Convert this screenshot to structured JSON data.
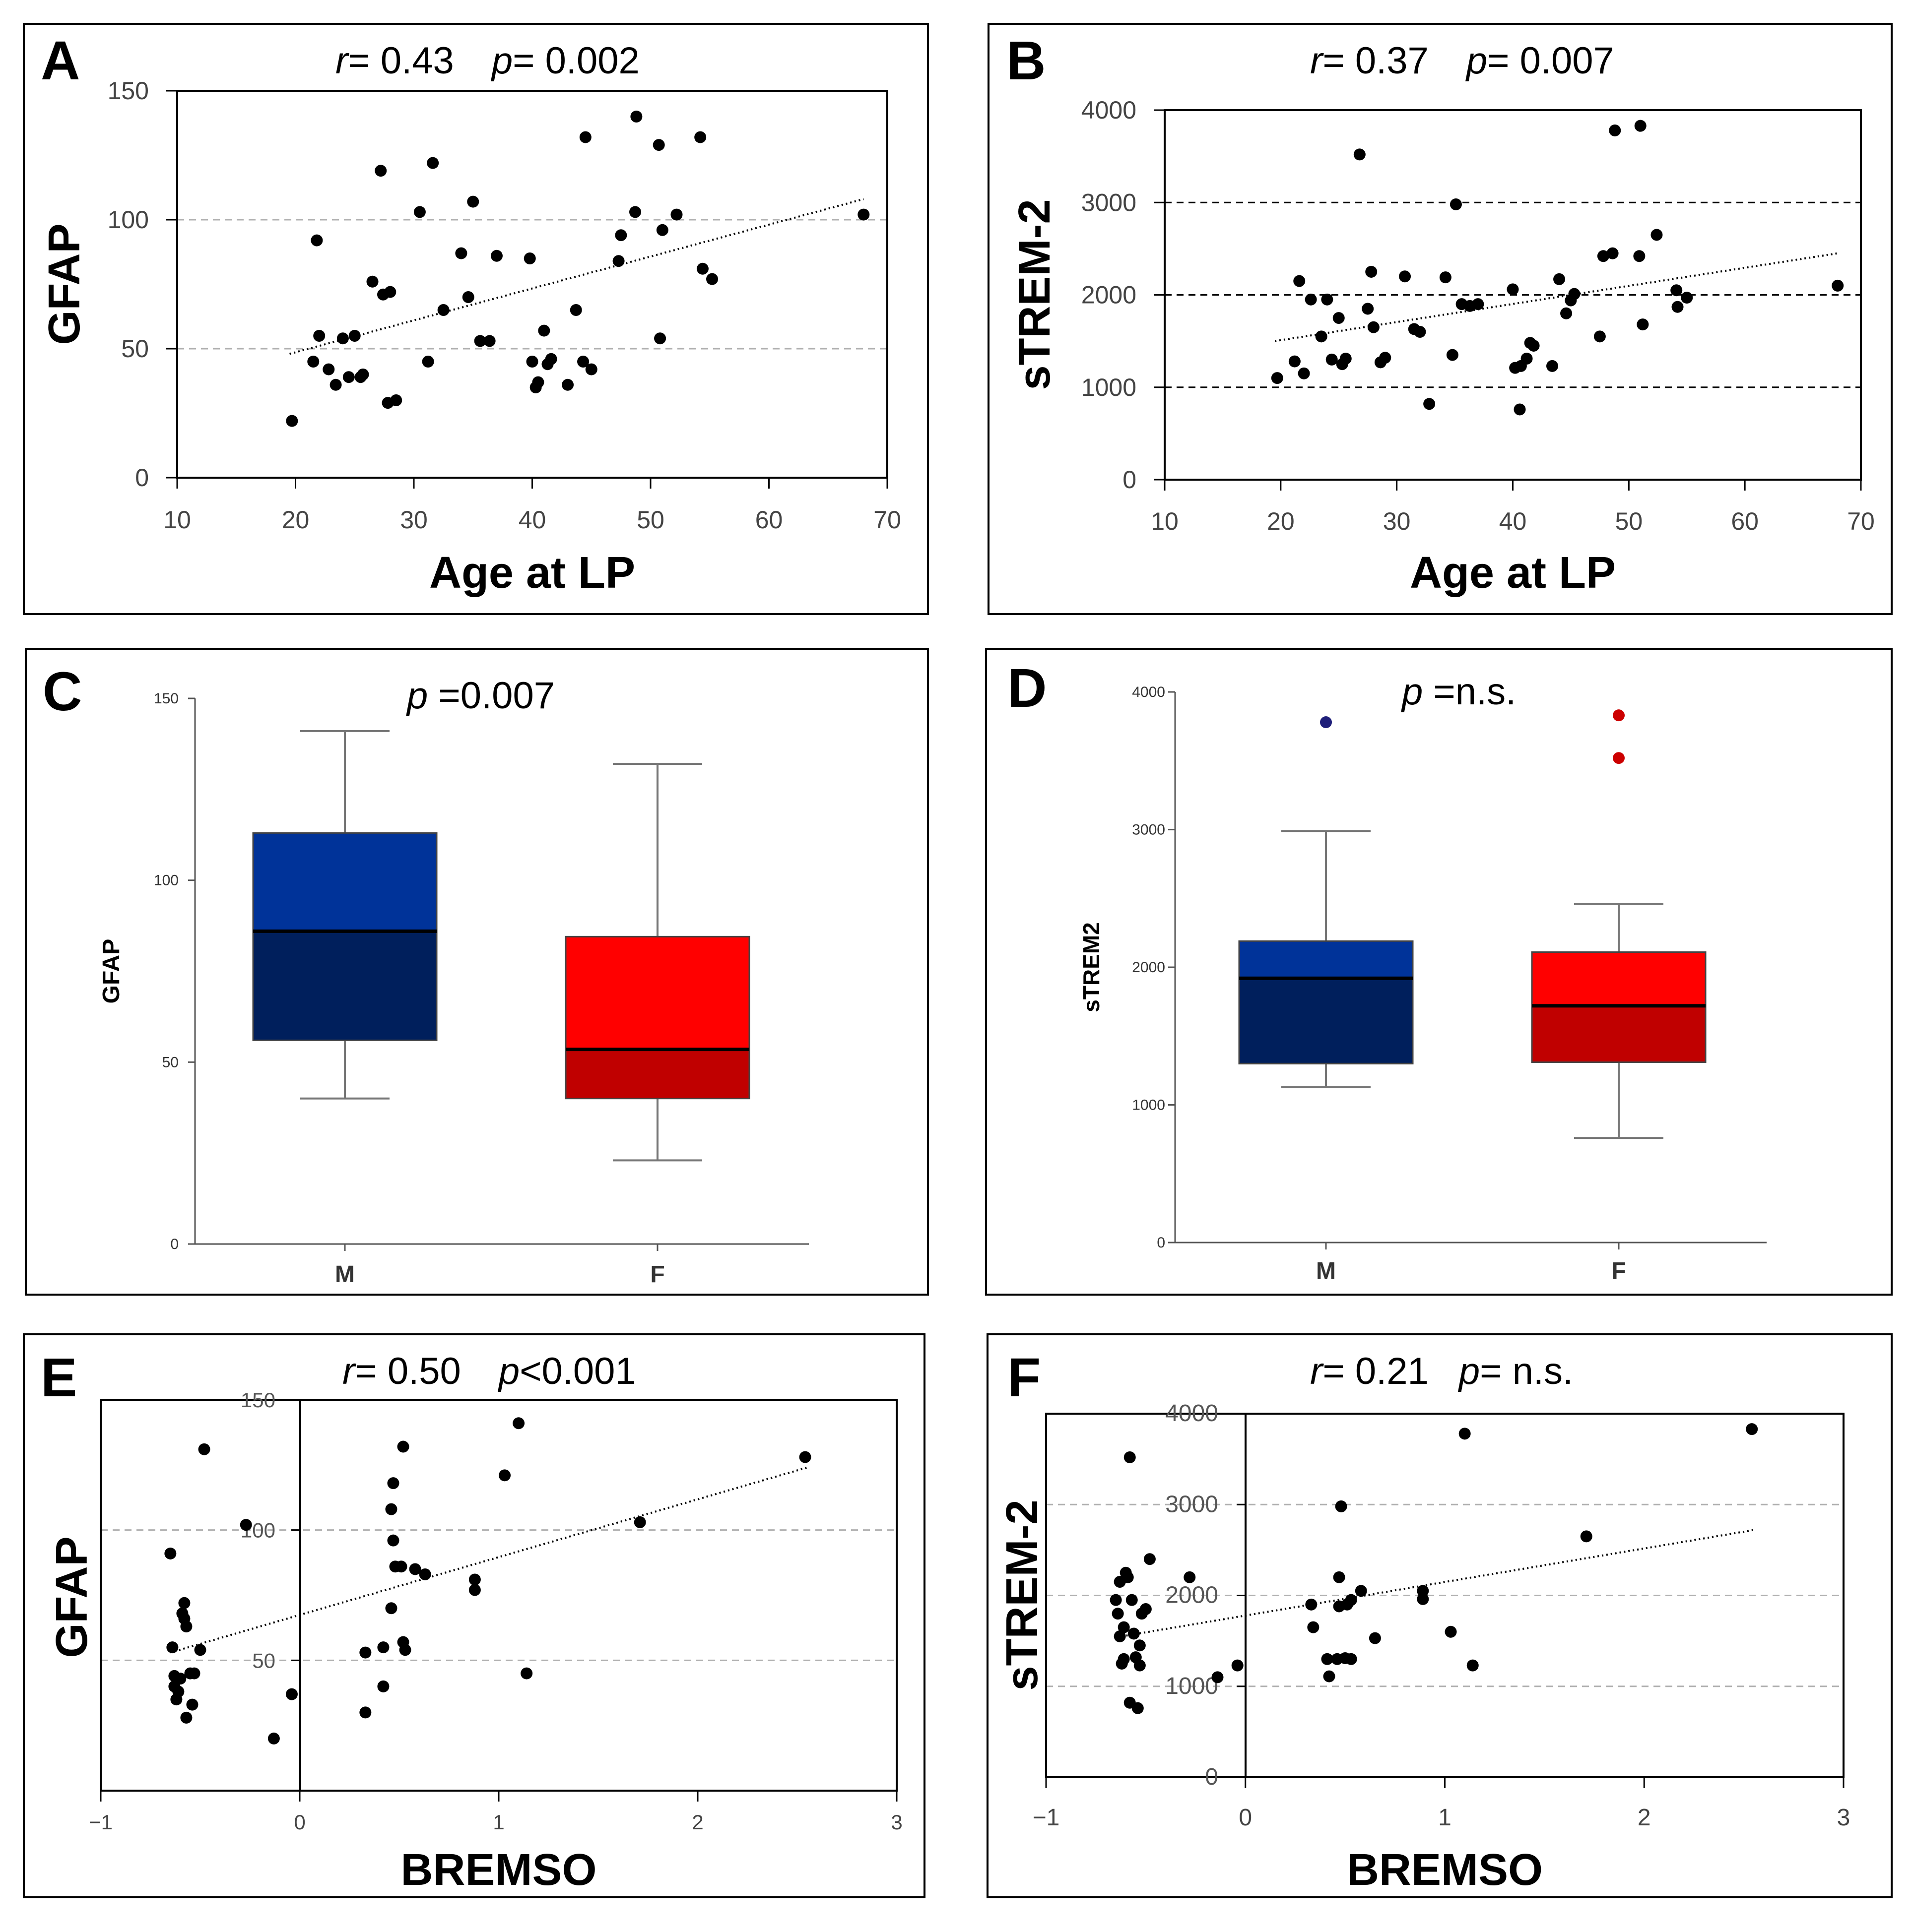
{
  "panels": [
    {
      "id": "A",
      "kind": "scatter",
      "stats": {
        "r": "0.43",
        "p": "0.002",
        "r_label": "r",
        "p_label": "p"
      },
      "xlabel": "Age at LP",
      "ylabel": "GFAP",
      "xticks": [
        "10",
        "20",
        "30",
        "40",
        "50",
        "60",
        "70"
      ],
      "yticks": [
        "0",
        "50",
        "100",
        "150"
      ]
    },
    {
      "id": "B",
      "kind": "scatter",
      "stats": {
        "r": "0.37",
        "p": "0.007",
        "r_label": "r",
        "p_label": "p"
      },
      "xlabel": "Age at LP",
      "ylabel": "sTREM-2",
      "xticks": [
        "10",
        "20",
        "30",
        "40",
        "50",
        "60",
        "70"
      ],
      "yticks": [
        "0",
        "1000",
        "2000",
        "3000",
        "4000"
      ]
    },
    {
      "id": "C",
      "kind": "box",
      "stats": {
        "p": "=0.007",
        "p_label": "p"
      },
      "ylabel": "GFAP",
      "xticks": [
        "M",
        "F"
      ],
      "yticks": [
        "0",
        "50",
        "100",
        "150"
      ]
    },
    {
      "id": "D",
      "kind": "box",
      "stats": {
        "p": "=n.s.",
        "p_label": "p"
      },
      "ylabel": "sTREM2",
      "xticks": [
        "M",
        "F"
      ],
      "yticks": [
        "0",
        "1000",
        "2000",
        "3000",
        "4000"
      ]
    },
    {
      "id": "E",
      "kind": "scatter",
      "stats": {
        "r": "0.50",
        "p": "<0.001",
        "r_label": "r",
        "p_label": "p"
      },
      "xlabel": "BREMSO",
      "ylabel": "GFAP",
      "xticks": [
        "−1",
        "0",
        "1",
        "2",
        "3"
      ],
      "yticks": [
        "50",
        "100",
        "150"
      ]
    },
    {
      "id": "F",
      "kind": "scatter",
      "stats": {
        "r": "0.21",
        "p": "n.s.",
        "r_label": "r",
        "p_label": "p"
      },
      "xlabel": "BREMSO",
      "ylabel": "sTREM-2",
      "xticks": [
        "−1",
        "0",
        "1",
        "2",
        "3"
      ],
      "yticks": [
        "0",
        "1000",
        "2000",
        "3000",
        "4000"
      ]
    }
  ],
  "colors": {
    "male_box_top": "#003399",
    "male_box_bottom": "#001f5c",
    "female_box_top": "#ff0000",
    "female_box_bottom": "#c00000",
    "male_outlier": "#1f1f7a",
    "female_outlier": "#cc0000",
    "points": "#000000",
    "grid": "#b0b0b0",
    "grid_dark": "#000000"
  },
  "chart_data": [
    {
      "panel": "A",
      "type": "scatter",
      "title": "r= 0.43 p= 0.002",
      "xlabel": "Age at LP",
      "ylabel": "GFAP",
      "xlim": [
        10,
        70
      ],
      "ylim": [
        0,
        150
      ],
      "hlines": [
        50,
        100
      ],
      "trend": [
        [
          19.5,
          48
        ],
        [
          68,
          108
        ]
      ],
      "points": [
        [
          19.7,
          22
        ],
        [
          21.5,
          45
        ],
        [
          21.8,
          92
        ],
        [
          22,
          55
        ],
        [
          22.8,
          42
        ],
        [
          23.4,
          36
        ],
        [
          24,
          54
        ],
        [
          24.5,
          39
        ],
        [
          25,
          55
        ],
        [
          25.5,
          39
        ],
        [
          25.7,
          40
        ],
        [
          26.5,
          76
        ],
        [
          27.2,
          119
        ],
        [
          27.4,
          71
        ],
        [
          27.8,
          29
        ],
        [
          28,
          72
        ],
        [
          28.5,
          30
        ],
        [
          30.5,
          103
        ],
        [
          31.2,
          45
        ],
        [
          31.6,
          122
        ],
        [
          32.5,
          65
        ],
        [
          34,
          87
        ],
        [
          34.6,
          70
        ],
        [
          35,
          107
        ],
        [
          35.6,
          53
        ],
        [
          36.4,
          53
        ],
        [
          37,
          86
        ],
        [
          39.8,
          85
        ],
        [
          40,
          45
        ],
        [
          40.3,
          35
        ],
        [
          40.5,
          37
        ],
        [
          41,
          57
        ],
        [
          41.3,
          44
        ],
        [
          41.6,
          46
        ],
        [
          43,
          36
        ],
        [
          43.7,
          65
        ],
        [
          44.3,
          45
        ],
        [
          44.5,
          132
        ],
        [
          45,
          42
        ],
        [
          47.3,
          84
        ],
        [
          47.5,
          94
        ],
        [
          48.7,
          103
        ],
        [
          48.8,
          140
        ],
        [
          50.7,
          129
        ],
        [
          50.8,
          54
        ],
        [
          51,
          96
        ],
        [
          52.2,
          102
        ],
        [
          54.2,
          132
        ],
        [
          54.4,
          81
        ],
        [
          55.2,
          77
        ],
        [
          68,
          102
        ]
      ]
    },
    {
      "panel": "B",
      "type": "scatter",
      "title": "r= 0.37 p= 0.007",
      "xlabel": "Age at LP",
      "ylabel": "sTREM-2",
      "xlim": [
        10,
        70
      ],
      "ylim": [
        0,
        4000
      ],
      "hlines": [
        1000,
        2000,
        3000
      ],
      "trend": [
        [
          19.5,
          1500
        ],
        [
          68,
          2450
        ]
      ],
      "points": [
        [
          19.7,
          1100
        ],
        [
          21.2,
          1280
        ],
        [
          21.6,
          2150
        ],
        [
          22,
          1150
        ],
        [
          22.6,
          1950
        ],
        [
          23.5,
          1550
        ],
        [
          24,
          1950
        ],
        [
          24.4,
          1300
        ],
        [
          25,
          1750
        ],
        [
          25.3,
          1250
        ],
        [
          25.6,
          1310
        ],
        [
          26.8,
          3520
        ],
        [
          27.5,
          1850
        ],
        [
          27.8,
          2250
        ],
        [
          28,
          1650
        ],
        [
          28.6,
          1270
        ],
        [
          29,
          1320
        ],
        [
          30.7,
          2200
        ],
        [
          31.5,
          1630
        ],
        [
          32,
          1600
        ],
        [
          32.8,
          820
        ],
        [
          34.2,
          2190
        ],
        [
          34.8,
          1350
        ],
        [
          35.1,
          2980
        ],
        [
          35.6,
          1900
        ],
        [
          36.3,
          1880
        ],
        [
          37,
          1900
        ],
        [
          40,
          2060
        ],
        [
          40.2,
          1210
        ],
        [
          40.6,
          760
        ],
        [
          40.7,
          1230
        ],
        [
          41.2,
          1310
        ],
        [
          41.5,
          1480
        ],
        [
          41.8,
          1450
        ],
        [
          43.4,
          1230
        ],
        [
          44,
          2170
        ],
        [
          44.6,
          1800
        ],
        [
          45,
          1940
        ],
        [
          45.3,
          2010
        ],
        [
          47.5,
          1550
        ],
        [
          47.8,
          2420
        ],
        [
          48.6,
          2450
        ],
        [
          48.8,
          3780
        ],
        [
          50.9,
          2420
        ],
        [
          51,
          3830
        ],
        [
          51.2,
          1680
        ],
        [
          52.4,
          2650
        ],
        [
          54.1,
          2050
        ],
        [
          54.2,
          1870
        ],
        [
          55,
          1970
        ],
        [
          68,
          2100
        ]
      ]
    },
    {
      "panel": "C",
      "type": "box",
      "title": "p =0.007",
      "ylabel": "GFAP",
      "categories": [
        "M",
        "F"
      ],
      "ylim": [
        0,
        150
      ],
      "series": [
        {
          "name": "M",
          "whisker_low": 40,
          "q1": 56,
          "median": 86,
          "q3": 113,
          "whisker_high": 141,
          "outliers": []
        },
        {
          "name": "F",
          "whisker_low": 23,
          "q1": 40,
          "median": 53.5,
          "q3": 84.5,
          "whisker_high": 132,
          "outliers": []
        }
      ]
    },
    {
      "panel": "D",
      "type": "box",
      "title": "p =n.s.",
      "ylabel": "sTREM2",
      "categories": [
        "M",
        "F"
      ],
      "ylim": [
        0,
        4000
      ],
      "series": [
        {
          "name": "M",
          "whisker_low": 1130,
          "q1": 1300,
          "median": 1920,
          "q3": 2190,
          "whisker_high": 2990,
          "outliers": [
            3780
          ]
        },
        {
          "name": "F",
          "whisker_low": 760,
          "q1": 1310,
          "median": 1720,
          "q3": 2110,
          "whisker_high": 2460,
          "outliers": [
            3830,
            3520
          ]
        }
      ]
    },
    {
      "panel": "E",
      "type": "scatter",
      "title": "r= 0.50 p<0.001",
      "xlabel": "BREMSO",
      "ylabel": "GFAP",
      "xlim": [
        -1,
        3
      ],
      "ylim": [
        0,
        150
      ],
      "hlines": [
        50,
        100
      ],
      "trend": [
        [
          -0.65,
          53
        ],
        [
          2.55,
          124
        ]
      ],
      "points": [
        [
          -0.65,
          91
        ],
        [
          -0.64,
          55
        ],
        [
          -0.63,
          44
        ],
        [
          -0.63,
          40
        ],
        [
          -0.62,
          35
        ],
        [
          -0.61,
          38
        ],
        [
          -0.6,
          43
        ],
        [
          -0.59,
          68
        ],
        [
          -0.58,
          66
        ],
        [
          -0.58,
          72
        ],
        [
          -0.57,
          63
        ],
        [
          -0.57,
          28
        ],
        [
          -0.55,
          45
        ],
        [
          -0.54,
          33
        ],
        [
          -0.53,
          45
        ],
        [
          -0.5,
          54
        ],
        [
          -0.48,
          131
        ],
        [
          -0.27,
          102
        ],
        [
          -0.13,
          20
        ],
        [
          -0.04,
          37
        ],
        [
          0.33,
          30
        ],
        [
          0.33,
          53
        ],
        [
          0.42,
          40
        ],
        [
          0.42,
          55
        ],
        [
          0.46,
          70
        ],
        [
          0.46,
          108
        ],
        [
          0.47,
          96
        ],
        [
          0.47,
          118
        ],
        [
          0.48,
          86
        ],
        [
          0.51,
          86
        ],
        [
          0.52,
          57
        ],
        [
          0.52,
          132
        ],
        [
          0.53,
          54
        ],
        [
          0.58,
          85
        ],
        [
          0.63,
          83
        ],
        [
          0.88,
          81
        ],
        [
          0.88,
          77
        ],
        [
          1.03,
          121
        ],
        [
          1.1,
          141
        ],
        [
          1.14,
          45
        ],
        [
          1.71,
          103
        ],
        [
          2.54,
          128
        ]
      ]
    },
    {
      "panel": "F",
      "type": "scatter",
      "title": "r= 0.21 p= n.s.",
      "xlabel": "BREMSO",
      "ylabel": "sTREM-2",
      "xlim": [
        -1,
        3
      ],
      "ylim": [
        0,
        4000
      ],
      "hlines": [
        1000,
        2000,
        3000
      ],
      "trend": [
        [
          -0.62,
          1550
        ],
        [
          2.55,
          2720
        ]
      ],
      "points": [
        [
          -0.65,
          1950
        ],
        [
          -0.64,
          1800
        ],
        [
          -0.63,
          2150
        ],
        [
          -0.63,
          1550
        ],
        [
          -0.62,
          1250
        ],
        [
          -0.61,
          1650
        ],
        [
          -0.61,
          1300
        ],
        [
          -0.6,
          2250
        ],
        [
          -0.59,
          2200
        ],
        [
          -0.58,
          3520
        ],
        [
          -0.58,
          820
        ],
        [
          -0.57,
          1950
        ],
        [
          -0.56,
          1580
        ],
        [
          -0.55,
          1320
        ],
        [
          -0.54,
          760
        ],
        [
          -0.53,
          1230
        ],
        [
          -0.53,
          1450
        ],
        [
          -0.52,
          1800
        ],
        [
          -0.5,
          1850
        ],
        [
          -0.48,
          2400
        ],
        [
          -0.28,
          2200
        ],
        [
          -0.14,
          1100
        ],
        [
          -0.04,
          1230
        ],
        [
          0.33,
          1900
        ],
        [
          0.34,
          1650
        ],
        [
          0.41,
          1300
        ],
        [
          0.42,
          1110
        ],
        [
          0.46,
          1300
        ],
        [
          0.47,
          1880
        ],
        [
          0.47,
          2200
        ],
        [
          0.48,
          2980
        ],
        [
          0.5,
          1310
        ],
        [
          0.51,
          1900
        ],
        [
          0.53,
          1950
        ],
        [
          0.53,
          1300
        ],
        [
          0.58,
          2050
        ],
        [
          0.65,
          1530
        ],
        [
          0.89,
          2050
        ],
        [
          0.89,
          1960
        ],
        [
          1.03,
          1600
        ],
        [
          1.1,
          3780
        ],
        [
          1.14,
          1230
        ],
        [
          1.71,
          2650
        ],
        [
          2.54,
          3830
        ]
      ]
    }
  ]
}
